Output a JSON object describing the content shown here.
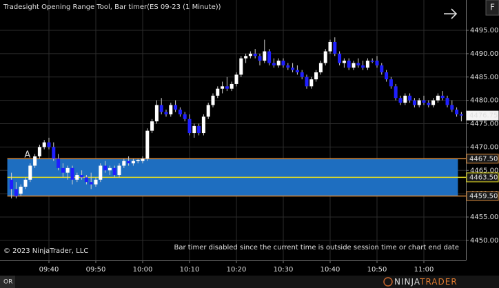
{
  "chart_data": {
    "type": "candlestick",
    "title": "Tradesight Opening Range Tool, Bar timer(ES 09-23 (1 Minute))",
    "copyright": "© 2023 NinjaTrader, LLC",
    "status_message": "Bar timer disabled since the current time is outside session time or chart end date",
    "annotation": "A",
    "tab_label": "OR",
    "axis_button": "F",
    "logo": [
      "NINJA",
      "TRADER"
    ],
    "up_color": "#ffffff",
    "down_color": "#1f1fff",
    "wick_color": "#d0d0d0",
    "range_fill": "#1e6ec0",
    "range_border": "#d88a3a",
    "mid_color": "#e8e020",
    "ylim": [
      4445.7,
      4501.5
    ],
    "yticks": [
      {
        "value": 4450,
        "label": "4450.00"
      },
      {
        "value": 4455,
        "label": "4455.00"
      },
      {
        "value": 4460,
        "label": "4460.00"
      },
      {
        "value": 4465,
        "label": "4465.00"
      },
      {
        "value": 4470,
        "label": "4470.00"
      },
      {
        "value": 4475,
        "label": "4475.00"
      },
      {
        "value": 4480,
        "label": "4480.00"
      },
      {
        "value": 4485,
        "label": "4485.00"
      },
      {
        "value": 4490,
        "label": "4490.00"
      },
      {
        "value": 4495,
        "label": "4495.00"
      }
    ],
    "grid": true,
    "opening_range": {
      "high": {
        "value": 4467.5,
        "label": "4467.50"
      },
      "mid": {
        "value": 4463.5,
        "label": "4463.50"
      },
      "low": {
        "value": 4459.5,
        "label": "4459.50"
      }
    },
    "last_price": 4476.75,
    "categories": [
      null,
      null,
      null,
      null,
      null,
      null,
      null,
      null,
      "09:40",
      null,
      null,
      null,
      null,
      null,
      null,
      null,
      null,
      null,
      "09:50",
      null,
      null,
      null,
      null,
      null,
      null,
      null,
      null,
      null,
      "10:00",
      null,
      null,
      null,
      null,
      null,
      null,
      null,
      null,
      null,
      "10:10",
      null,
      null,
      null,
      null,
      null,
      null,
      null,
      null,
      null,
      "10:20",
      null,
      null,
      null,
      null,
      null,
      null,
      null,
      null,
      null,
      "10:30",
      null,
      null,
      null,
      null,
      null,
      null,
      null,
      null,
      null,
      "10:40",
      null,
      null,
      null,
      null,
      null,
      null,
      null,
      null,
      null,
      "10:50",
      null,
      null,
      null,
      null,
      null,
      null,
      null,
      null,
      null,
      "11:00",
      null,
      null,
      null,
      null,
      null,
      null,
      null,
      null
    ],
    "ohlc": [
      [
        4463,
        4464.5,
        4459,
        4461
      ],
      [
        4461,
        4462.5,
        4459,
        4459.5
      ],
      [
        4460,
        4462,
        4459.5,
        4461.5
      ],
      [
        4461.5,
        4463.5,
        4461,
        4463
      ],
      [
        4463,
        4466.5,
        4462.5,
        4466
      ],
      [
        4466,
        4468.5,
        4465.5,
        4468
      ],
      [
        4468,
        4470.5,
        4467.5,
        4470
      ],
      [
        4470,
        4471.5,
        4469.5,
        4471
      ],
      [
        4471,
        4472,
        4469.5,
        4470
      ],
      [
        4470,
        4471,
        4467,
        4467.5
      ],
      [
        4467.5,
        4468.5,
        4465,
        4465.5
      ],
      [
        4465.5,
        4466.5,
        4463.5,
        4464.5
      ],
      [
        4464.5,
        4466,
        4463,
        4465.5
      ],
      [
        4465.5,
        4466,
        4462,
        4463
      ],
      [
        4463,
        4464.5,
        4462.5,
        4464
      ],
      [
        4464,
        4465,
        4463,
        4463.5
      ],
      [
        4463.5,
        4464,
        4462,
        4462.5
      ],
      [
        4462.5,
        4464.5,
        4461,
        4462
      ],
      [
        4462,
        4463.5,
        4461.5,
        4463
      ],
      [
        4463,
        4466.5,
        4462.5,
        4466
      ],
      [
        4466,
        4467,
        4464.5,
        4465
      ],
      [
        4465,
        4466,
        4464,
        4465.5
      ],
      [
        4465.5,
        4466,
        4463.5,
        4464
      ],
      [
        4464,
        4466.5,
        4463.5,
        4466
      ],
      [
        4466,
        4467.5,
        4465.5,
        4467
      ],
      [
        4467,
        4468,
        4466,
        4466.5
      ],
      [
        4466.5,
        4467.5,
        4466,
        4467
      ],
      [
        4467,
        4467.5,
        4466.5,
        4467.25
      ],
      [
        4467,
        4468,
        4466.5,
        4467.5
      ],
      [
        4467.5,
        4474,
        4467,
        4473.5
      ],
      [
        4473.5,
        4476,
        4473,
        4475.5
      ],
      [
        4475.5,
        4480,
        4475,
        4479
      ],
      [
        4479,
        4480.5,
        4477,
        4477.5
      ],
      [
        4477.5,
        4478,
        4476.5,
        4477
      ],
      [
        4477,
        4479.5,
        4476.5,
        4479
      ],
      [
        4479,
        4480,
        4477.5,
        4478
      ],
      [
        4478,
        4478.5,
        4476.5,
        4477
      ],
      [
        4477,
        4477.5,
        4475.5,
        4476
      ],
      [
        4476,
        4477,
        4472.5,
        4473
      ],
      [
        4473,
        4475,
        4472,
        4474.5
      ],
      [
        4474.5,
        4475,
        4472.5,
        4473
      ],
      [
        4473,
        4477,
        4472.5,
        4476.5
      ],
      [
        4476.5,
        4479.5,
        4476,
        4479
      ],
      [
        4479,
        4481.5,
        4478.5,
        4481
      ],
      [
        4481,
        4483,
        4480.5,
        4482.5
      ],
      [
        4482.5,
        4484,
        4481.5,
        4483
      ],
      [
        4483,
        4485,
        4482,
        4482.5
      ],
      [
        4482.5,
        4484,
        4482,
        4483.5
      ],
      [
        4483.5,
        4486,
        4483,
        4485.5
      ],
      [
        4485.5,
        4489.5,
        4485,
        4489
      ],
      [
        4489,
        4490,
        4488,
        4489.5
      ],
      [
        4489.5,
        4490.5,
        4489,
        4490
      ],
      [
        4490,
        4491,
        4489,
        4489.5
      ],
      [
        4489.5,
        4490,
        4487.5,
        4488.5
      ],
      [
        4488.5,
        4493,
        4488,
        4490.5
      ],
      [
        4490.5,
        4491,
        4487.5,
        4488
      ],
      [
        4488,
        4489,
        4487,
        4487.5
      ],
      [
        4487.5,
        4489,
        4487,
        4488.5
      ],
      [
        4488.5,
        4489,
        4487,
        4487.5
      ],
      [
        4487.5,
        4488,
        4486.5,
        4487
      ],
      [
        4487,
        4488,
        4486,
        4486.5
      ],
      [
        4486.5,
        4487.5,
        4485.5,
        4486
      ],
      [
        4486,
        4486.5,
        4484.5,
        4485
      ],
      [
        4485,
        4485.5,
        4482.5,
        4483
      ],
      [
        4483,
        4485,
        4482.5,
        4484.5
      ],
      [
        4484.5,
        4486.5,
        4484,
        4486
      ],
      [
        4486,
        4488.5,
        4485.5,
        4488
      ],
      [
        4488,
        4491,
        4487.5,
        4490.5
      ],
      [
        4490.5,
        4493,
        4490,
        4492.5
      ],
      [
        4492.5,
        4493.5,
        4489.5,
        4490
      ],
      [
        4490,
        4490.5,
        4487.5,
        4488
      ],
      [
        4488,
        4489,
        4487,
        4488.5
      ],
      [
        4488.5,
        4489,
        4486.5,
        4487
      ],
      [
        4487,
        4488.5,
        4486.5,
        4488
      ],
      [
        4488,
        4489,
        4487,
        4487.5
      ],
      [
        4487.5,
        4488.5,
        4486.5,
        4487
      ],
      [
        4487,
        4489,
        4486.5,
        4488.5
      ],
      [
        4488.5,
        4489,
        4488,
        4488.25
      ],
      [
        4488.5,
        4489.5,
        4487,
        4487.5
      ],
      [
        4487.5,
        4488,
        4485.5,
        4486
      ],
      [
        4486,
        4486.5,
        4484,
        4484.5
      ],
      [
        4484.5,
        4485,
        4482.5,
        4483
      ],
      [
        4483,
        4483.5,
        4480,
        4480.5
      ],
      [
        4480.5,
        4481,
        4479,
        4479.5
      ],
      [
        4479.5,
        4481.5,
        4479,
        4481
      ],
      [
        4481,
        4481.5,
        4479.5,
        4480
      ],
      [
        4480,
        4480.5,
        4478.5,
        4479
      ],
      [
        4479,
        4480.5,
        4478.5,
        4480
      ],
      [
        4480,
        4481,
        4479,
        4479.5
      ],
      [
        4479.5,
        4480,
        4478.5,
        4479
      ],
      [
        4479,
        4480.5,
        4478.5,
        4480
      ],
      [
        4480,
        4481.5,
        4479.5,
        4481
      ],
      [
        4481,
        4482,
        4480,
        4480.5
      ],
      [
        4480.5,
        4481,
        4478.5,
        4479
      ],
      [
        4479,
        4480,
        4477.5,
        4478
      ],
      [
        4478,
        4478.5,
        4476.5,
        4477
      ],
      [
        4477,
        4477.5,
        4475.5,
        4476.75
      ]
    ]
  }
}
